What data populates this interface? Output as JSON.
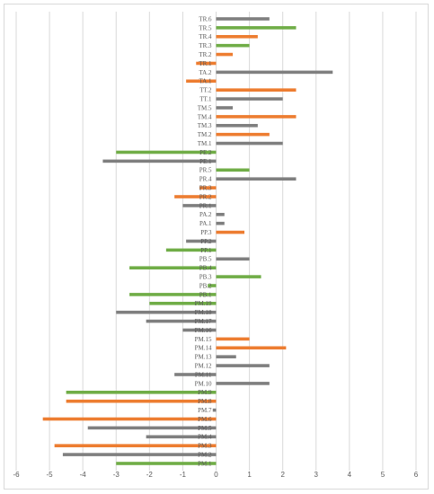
{
  "chart_data": {
    "type": "bar",
    "orientation": "horizontal",
    "xlim": [
      -6,
      6
    ],
    "x_ticks": [
      "-6",
      "-5",
      "-4",
      "-3",
      "-2",
      "-1",
      "0",
      "1",
      "2",
      "3",
      "4",
      "5",
      "6"
    ],
    "grid": "vertical",
    "legend": "none",
    "colors": {
      "gray": "#7f7f7f",
      "orange": "#ed7d31",
      "green": "#70ad47"
    },
    "bars": [
      {
        "label": "TR.6",
        "value": 1.6,
        "color": "gray"
      },
      {
        "label": "TR.5",
        "value": 2.4,
        "color": "green"
      },
      {
        "label": "TR.4",
        "value": 1.25,
        "color": "orange"
      },
      {
        "label": "TR.3",
        "value": 1.0,
        "color": "green"
      },
      {
        "label": "TR.2",
        "value": 0.5,
        "color": "orange"
      },
      {
        "label": "TR.1",
        "value": -0.6,
        "color": "orange"
      },
      {
        "label": "TA.2",
        "value": 3.5,
        "color": "gray"
      },
      {
        "label": "TA.1",
        "value": -0.9,
        "color": "orange"
      },
      {
        "label": "TT.2",
        "value": 2.4,
        "color": "orange"
      },
      {
        "label": "TT.1",
        "value": 2.0,
        "color": "gray"
      },
      {
        "label": "TM.5",
        "value": 0.5,
        "color": "gray"
      },
      {
        "label": "TM.4",
        "value": 2.4,
        "color": "orange"
      },
      {
        "label": "TM.3",
        "value": 1.25,
        "color": "gray"
      },
      {
        "label": "TM.2",
        "value": 1.6,
        "color": "orange"
      },
      {
        "label": "TM.1",
        "value": 2.0,
        "color": "gray"
      },
      {
        "label": "PE.2",
        "value": -3.0,
        "color": "green"
      },
      {
        "label": "PE.1",
        "value": -3.4,
        "color": "gray"
      },
      {
        "label": "PR.5",
        "value": 1.0,
        "color": "green"
      },
      {
        "label": "PR.4",
        "value": 2.4,
        "color": "gray"
      },
      {
        "label": "PR.3",
        "value": -0.5,
        "color": "orange"
      },
      {
        "label": "PR.2",
        "value": -1.25,
        "color": "orange"
      },
      {
        "label": "PR.1",
        "value": -1.0,
        "color": "gray"
      },
      {
        "label": "PA.2",
        "value": 0.25,
        "color": "gray"
      },
      {
        "label": "PA.1",
        "value": 0.25,
        "color": "gray"
      },
      {
        "label": "PP.3",
        "value": 0.85,
        "color": "orange"
      },
      {
        "label": "PP.2",
        "value": -0.9,
        "color": "gray"
      },
      {
        "label": "PP.1",
        "value": -1.5,
        "color": "green"
      },
      {
        "label": "PB.5",
        "value": 1.0,
        "color": "gray"
      },
      {
        "label": "PB.4",
        "value": -2.6,
        "color": "green"
      },
      {
        "label": "PB.3",
        "value": 1.35,
        "color": "green"
      },
      {
        "label": "PB.2",
        "value": -0.25,
        "color": "green"
      },
      {
        "label": "PB.1",
        "value": -2.6,
        "color": "green"
      },
      {
        "label": "PM.19",
        "value": -2.0,
        "color": "green"
      },
      {
        "label": "PM.18",
        "value": -3.0,
        "color": "gray"
      },
      {
        "label": "PM.17",
        "value": -2.1,
        "color": "gray"
      },
      {
        "label": "PM.16",
        "value": -1.0,
        "color": "gray"
      },
      {
        "label": "PM.15",
        "value": 1.0,
        "color": "orange"
      },
      {
        "label": "PM.14",
        "value": 2.1,
        "color": "orange"
      },
      {
        "label": "PM.13",
        "value": 0.6,
        "color": "gray"
      },
      {
        "label": "PM.12",
        "value": 1.6,
        "color": "gray"
      },
      {
        "label": "PM.11",
        "value": -1.25,
        "color": "gray"
      },
      {
        "label": "PM.10",
        "value": 1.6,
        "color": "gray"
      },
      {
        "label": "PM.9",
        "value": -4.5,
        "color": "green"
      },
      {
        "label": "PM.8",
        "value": -4.5,
        "color": "orange"
      },
      {
        "label": "PM.7",
        "value": -0.1,
        "color": "gray"
      },
      {
        "label": "PM.6",
        "value": -5.2,
        "color": "orange"
      },
      {
        "label": "PM.5",
        "value": -3.85,
        "color": "gray"
      },
      {
        "label": "PM.4",
        "value": -2.1,
        "color": "gray"
      },
      {
        "label": "PM.3",
        "value": -4.85,
        "color": "orange"
      },
      {
        "label": "PM.2",
        "value": -4.6,
        "color": "gray"
      },
      {
        "label": "PM.1",
        "value": -3.0,
        "color": "green"
      }
    ]
  }
}
